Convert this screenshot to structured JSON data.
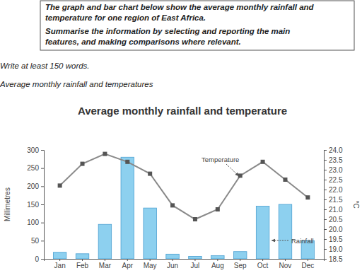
{
  "task": {
    "lines": [
      "The graph and bar chart below show the average monthly rainfall and",
      "temperature for one region of East Africa.",
      "Summarise the information by selecting and reporting the main",
      "features, and making comparisons where relevant."
    ]
  },
  "instruction": "Write at least 150 words.",
  "caption": "Average monthly rainfall and temperatures",
  "chart_data": {
    "type": "bar",
    "title": "Average monthly rainfall and temperature",
    "categories": [
      "Jan",
      "Feb",
      "Mar",
      "Apr",
      "May",
      "Jun",
      "Jul",
      "Aug",
      "Sep",
      "Oct",
      "Nov",
      "Dec"
    ],
    "series": [
      {
        "name": "Rainfall",
        "type": "bar",
        "color": "#8dd0ef",
        "values": [
          18,
          14,
          95,
          280,
          140,
          13,
          7,
          9,
          20,
          145,
          150,
          50
        ]
      },
      {
        "name": "Temperature",
        "type": "line",
        "axis": "y2",
        "color": "#8a8a8a",
        "marker": "square",
        "values": [
          22.2,
          23.3,
          23.8,
          23.4,
          22.8,
          21.2,
          20.5,
          21.0,
          22.7,
          23.4,
          22.5,
          21.6
        ]
      }
    ],
    "ylabel": "Millimetres",
    "y2label": "°C",
    "ylim": [
      0,
      300
    ],
    "yticks": [
      0,
      50,
      100,
      150,
      200,
      250,
      300
    ],
    "y2lim": [
      18.5,
      24
    ],
    "y2ticks": [
      18.5,
      {
        "value": 19,
        "label": "19.0"
      },
      19.5,
      {
        "value": 20,
        "label": "20.0"
      },
      20.5,
      {
        "value": 21,
        "label": "21.0"
      },
      21.5,
      {
        "value": 22,
        "label": "22.0"
      },
      22.5,
      {
        "value": 23,
        "label": "23.0"
      },
      23.5,
      {
        "value": 24,
        "label": "24.0"
      }
    ],
    "grid": false
  }
}
